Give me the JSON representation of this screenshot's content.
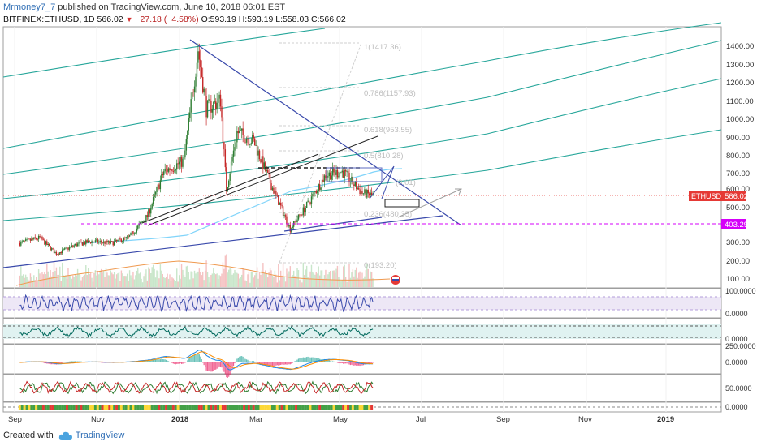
{
  "header": {
    "author": "Mrmoney7_7",
    "published_text": "published on TradingView.com, June 10, 2018 06:01 EST",
    "symbol": "BITFINEX:ETHUSD, 1D",
    "last": "566.02",
    "change": "−27.18 (−4.58%)",
    "open": "O:593.19",
    "high": "H:593.19",
    "low": "L:558.03",
    "close": "C:566.02"
  },
  "footer": {
    "created_with": "Created with",
    "brand": "TradingView"
  },
  "colors": {
    "up": "#2e7d32",
    "down": "#c62828",
    "channel_green": "#26a69a",
    "trend_blue": "#3949ab",
    "ma_lightblue": "#81d4fa",
    "ma_orange": "#ef9a50",
    "support_magenta": "#d500f9",
    "price_red": "#e53935",
    "fib_grey": "#bdbdbd"
  },
  "price_axis": {
    "ticks": [
      "1400.00",
      "1300.00",
      "1200.00",
      "1100.00",
      "1000.00",
      "900.00",
      "800.00",
      "700.00",
      "600.00",
      "500.00",
      "400.00",
      "300.00",
      "200.00",
      "100.00"
    ],
    "last_price_label": "ETHUSD",
    "last_price": "566.02",
    "support_price": "403.29"
  },
  "time_axis": {
    "labels": [
      "Sep",
      "Nov",
      "2018",
      "Mar",
      "May",
      "Jul",
      "Sep",
      "Nov",
      "2019"
    ]
  },
  "fib_labels": [
    "1(1417.36)",
    "0.786(1157.93)",
    "0.618(953.55)",
    "0.5(810.28)",
    "(3.01)",
    "0.236(480.35)",
    "0(193.20)"
  ],
  "indicator_axes": {
    "rsi": [
      "100.0000",
      "0.0000"
    ],
    "stoch": [
      "0.0000"
    ],
    "macd": [
      "250.0000",
      "0.0000"
    ],
    "osc": [
      "50.0000"
    ],
    "volume_dots": [
      "0.0000"
    ]
  },
  "chart_data": {
    "type": "candlestick",
    "symbol": "BITFINEX:ETHUSD",
    "interval": "1D",
    "ylim": [
      60,
      1480
    ],
    "close_series": {
      "x": [
        "2017-08-15",
        "2017-09-01",
        "2017-09-15",
        "2017-10-01",
        "2017-10-15",
        "2017-11-01",
        "2017-11-15",
        "2017-12-01",
        "2017-12-15",
        "2018-01-01",
        "2018-01-13",
        "2018-01-20",
        "2018-02-01",
        "2018-02-06",
        "2018-02-15",
        "2018-03-01",
        "2018-03-15",
        "2018-04-01",
        "2018-04-15",
        "2018-05-01",
        "2018-05-15",
        "2018-06-01",
        "2018-06-10"
      ],
      "values": [
        300,
        330,
        240,
        290,
        310,
        300,
        330,
        450,
        700,
        760,
        1380,
        1050,
        1100,
        600,
        920,
        870,
        640,
        380,
        510,
        680,
        700,
        580,
        566
      ]
    },
    "last_price": 566.02,
    "support_level": 403.29
  }
}
